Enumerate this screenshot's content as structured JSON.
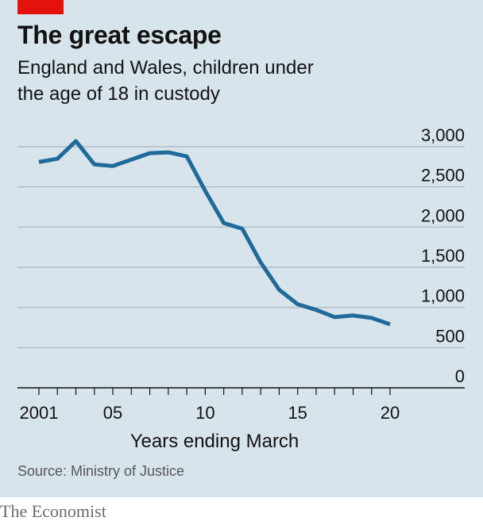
{
  "header": {
    "title": "The great escape",
    "subtitle_line1": "England and Wales, children under",
    "subtitle_line2": "the age of 18 in custody"
  },
  "footer": {
    "source": "Source: Ministry of Justice",
    "brand": "The Economist"
  },
  "colors": {
    "background": "#d7e4ec",
    "line": "#1f6a9a",
    "grid": "#a8b5bd",
    "accent": "#e3120b"
  },
  "chart_data": {
    "type": "line",
    "title": "The great escape",
    "subtitle": "England and Wales, children under the age of 18 in custody",
    "xlabel": "Years ending March",
    "ylabel": "",
    "x": [
      2001,
      2002,
      2003,
      2004,
      2005,
      2006,
      2007,
      2008,
      2009,
      2010,
      2011,
      2012,
      2013,
      2014,
      2015,
      2016,
      2017,
      2018,
      2019,
      2020
    ],
    "series": [
      {
        "name": "",
        "values": [
          2810,
          2850,
          3070,
          2780,
          2760,
          2840,
          2920,
          2930,
          2880,
          2450,
          2050,
          1980,
          1560,
          1220,
          1040,
          970,
          880,
          900,
          870,
          790
        ]
      }
    ],
    "xlim": [
      2001,
      2020
    ],
    "ylim": [
      0,
      3000
    ],
    "y_ticks": [
      0,
      500,
      1000,
      1500,
      2000,
      2500,
      3000
    ],
    "y_tick_labels": [
      "0",
      "500",
      "1,000",
      "1,500",
      "2,000",
      "2,500",
      "3,000"
    ],
    "x_tick_values": [
      2001,
      2005,
      2010,
      2015,
      2020
    ],
    "x_tick_labels": [
      "2001",
      "05",
      "10",
      "15",
      "20"
    ],
    "grid": true,
    "y_axis_position": "right",
    "legend": "none"
  }
}
